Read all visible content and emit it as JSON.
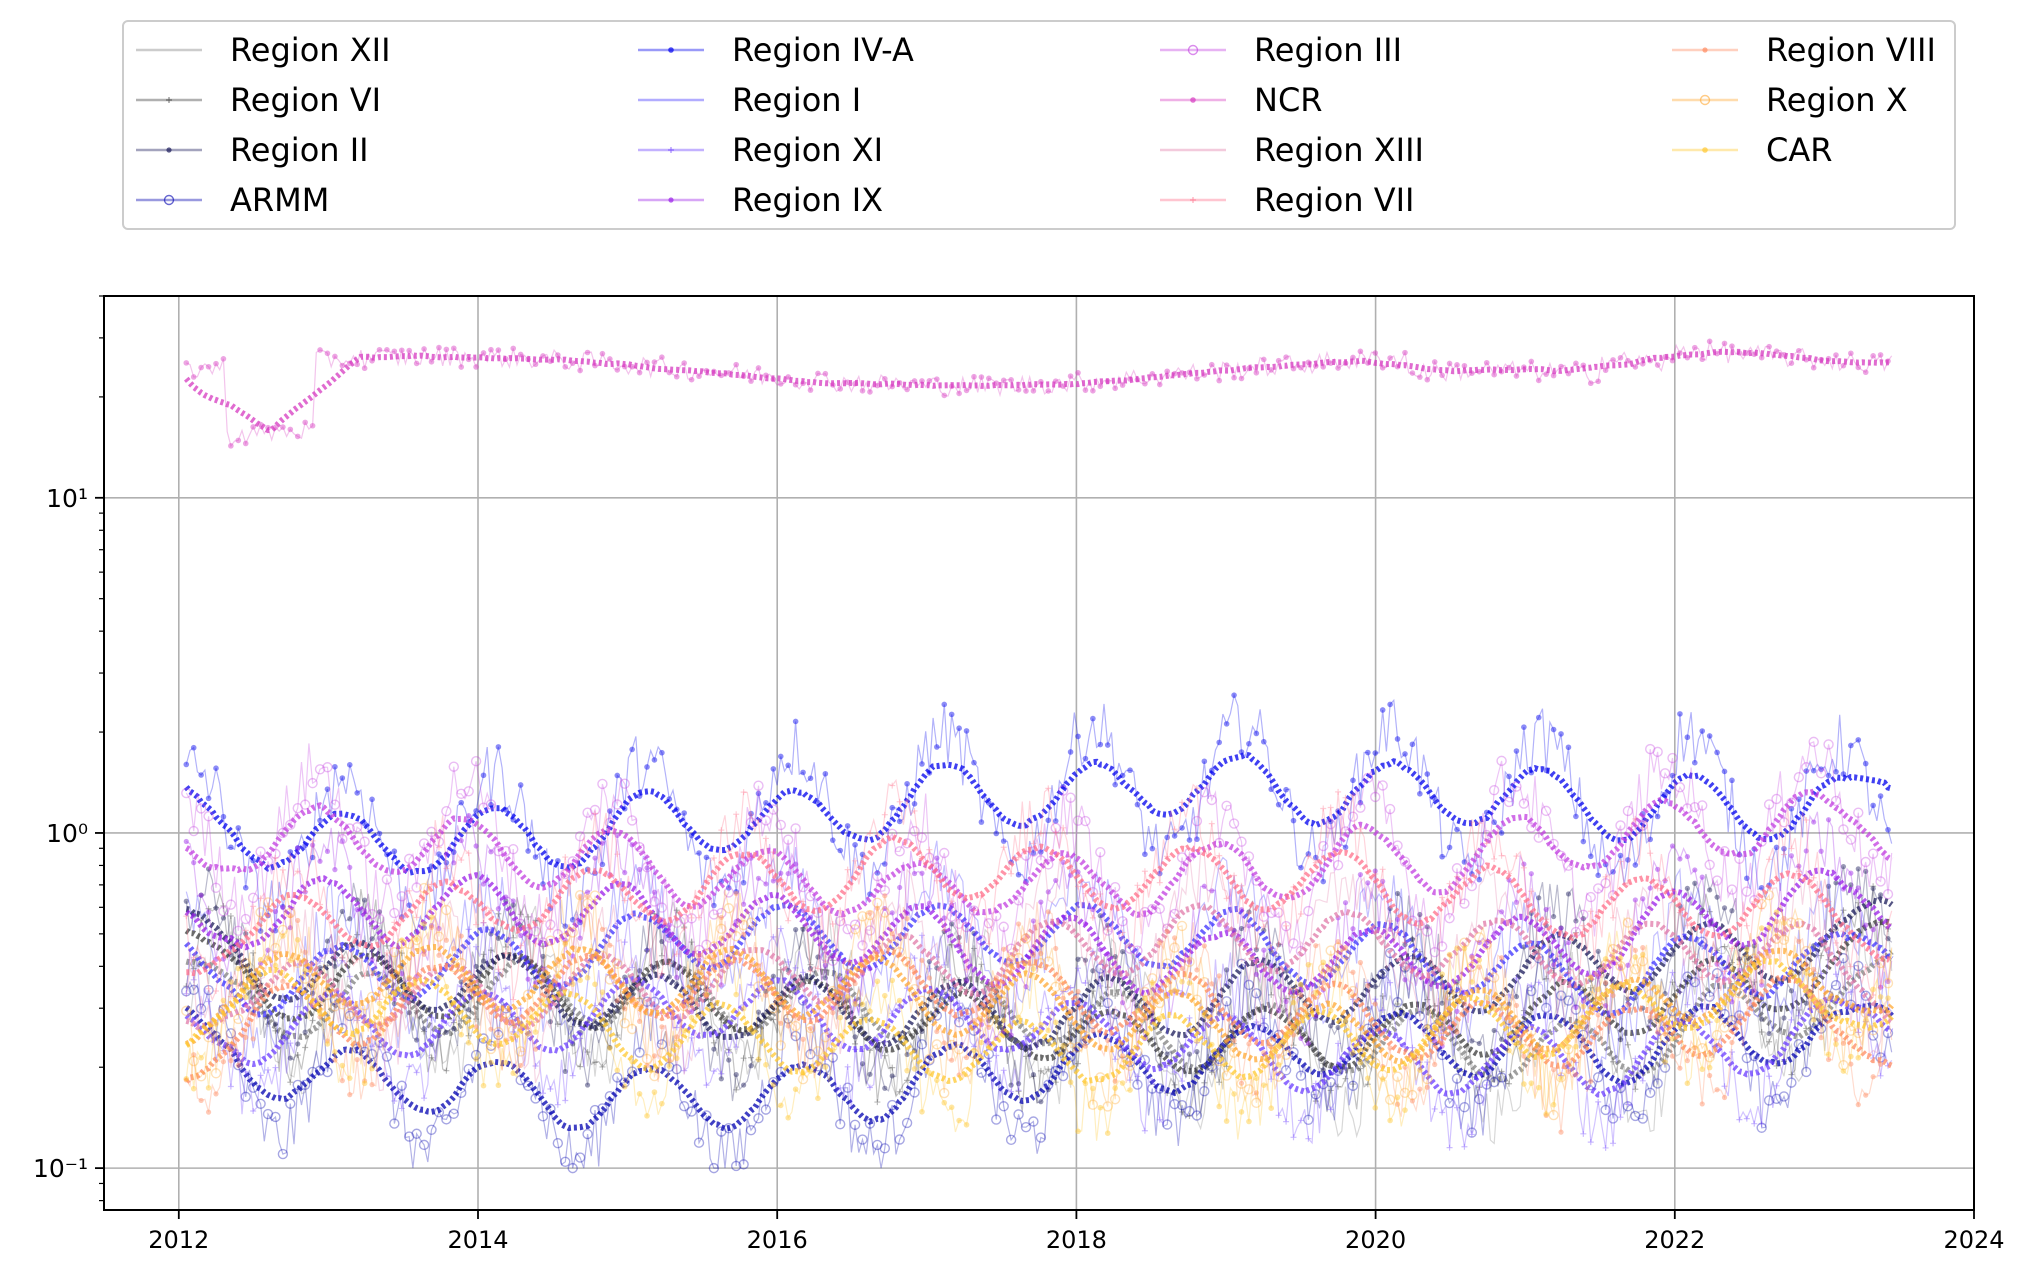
{
  "chart_data": {
    "type": "line",
    "title": "",
    "xlabel": "",
    "ylabel": "",
    "y_scale": "log",
    "ylim": [
      0.075,
      40
    ],
    "xlim": [
      2011.5,
      2024
    ],
    "x_ticks": [
      "2012",
      "2014",
      "2016",
      "2018",
      "2020",
      "2022",
      "2024"
    ],
    "x_tick_values": [
      2012,
      2014,
      2016,
      2018,
      2020,
      2022,
      2024
    ],
    "y_ticks": [
      {
        "label": "10⁻¹",
        "value": 0.1
      },
      {
        "label": "10⁰",
        "value": 1
      },
      {
        "label": "10¹",
        "value": 10
      }
    ],
    "grid": true,
    "legend_position": "top, outside plot, 4 columns",
    "series": [
      {
        "name": "Region XII",
        "color": "#7f7f7f",
        "marker": "none",
        "baseline": 0.28
      },
      {
        "name": "Region VI",
        "color": "#3a3a3a",
        "marker": "plus",
        "baseline": 0.3
      },
      {
        "name": "Region II",
        "color": "#1a1a5a",
        "marker": "dot",
        "baseline": 0.35
      },
      {
        "name": "ARMM",
        "color": "#0000b0",
        "marker": "circle",
        "baseline": 0.2
      },
      {
        "name": "Region IV-A",
        "color": "#0000ee",
        "marker": "star",
        "baseline": 1.15
      },
      {
        "name": "Region I",
        "color": "#3b30ff",
        "marker": "none",
        "baseline": 0.42
      },
      {
        "name": "Region XI",
        "color": "#6a3cff",
        "marker": "plus",
        "baseline": 0.25
      },
      {
        "name": "Region IX",
        "color": "#9a1ee8",
        "marker": "dot",
        "baseline": 0.5
      },
      {
        "name": "Region III",
        "color": "#c23ee0",
        "marker": "circle",
        "baseline": 0.85
      },
      {
        "name": "NCR",
        "color": "#d63ac0",
        "marker": "star",
        "baseline": 24
      },
      {
        "name": "Region XIII",
        "color": "#e07aa8",
        "marker": "none",
        "baseline": 0.4
      },
      {
        "name": "Region VII",
        "color": "#ff6f8a",
        "marker": "plus",
        "baseline": 0.65
      },
      {
        "name": "Region VIII",
        "color": "#ff8a60",
        "marker": "dot",
        "baseline": 0.3
      },
      {
        "name": "Region X",
        "color": "#ffa833",
        "marker": "circle",
        "baseline": 0.32
      },
      {
        "name": "CAR",
        "color": "#ffc830",
        "marker": "star",
        "baseline": 0.27
      }
    ]
  },
  "legend": {
    "columns": [
      [
        "Region XII",
        "Region VI",
        "Region II",
        "ARMM"
      ],
      [
        "Region IV-A",
        "Region I",
        "Region XI",
        "Region IX"
      ],
      [
        "Region III",
        "NCR",
        "Region XIII",
        "Region VII"
      ],
      [
        "Region VIII",
        "Region X",
        "CAR"
      ]
    ]
  }
}
